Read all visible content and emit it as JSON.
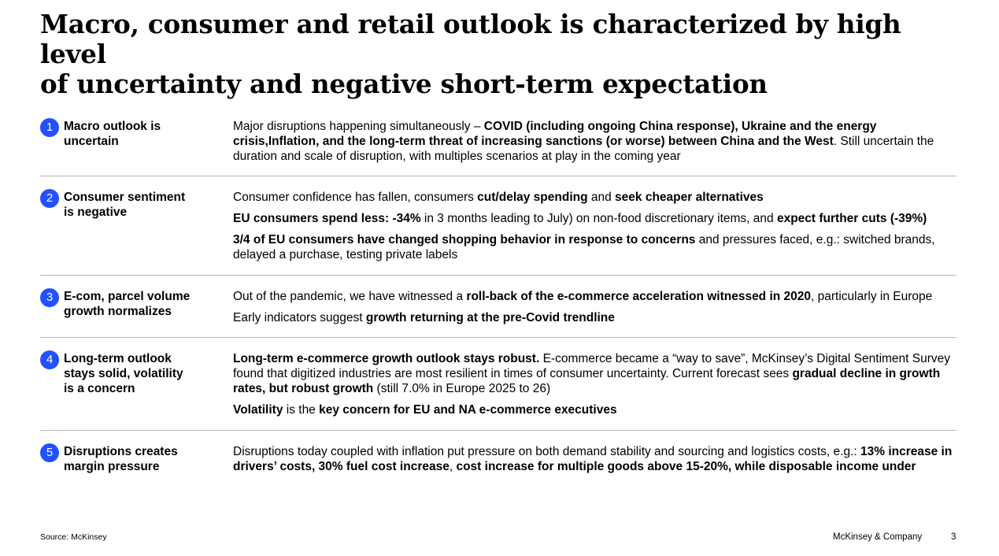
{
  "title": {
    "line1": "Macro, consumer and retail outlook is characterized by high level",
    "line2": "of uncertainty and negative short-term expectation"
  },
  "rows": [
    {
      "number": "1",
      "label_line1": "Macro outlook is",
      "label_line2": "uncertain",
      "paragraphs": [
        [
          {
            "t": "Major disruptions happening simultaneously – ",
            "b": false
          },
          {
            "t": "COVID (including ongoing China response), Ukraine and the energy crisis,",
            "b": true
          },
          {
            "t": "Inflation, and the long-term threat of increasing sanctions (or worse) between China and the West",
            "b": true
          },
          {
            "t": ". Still uncertain the duration and scale of disruption, with multiples scenarios at play in the coming year",
            "b": false
          }
        ]
      ]
    },
    {
      "number": "2",
      "label_line1": "Consumer sentiment",
      "label_line2": "is negative",
      "paragraphs": [
        [
          {
            "t": "Consumer confidence has fallen, consumers ",
            "b": false
          },
          {
            "t": "cut/delay spending",
            "b": true
          },
          {
            "t": " and ",
            "b": false
          },
          {
            "t": "seek cheaper alternatives",
            "b": true
          }
        ],
        [
          {
            "t": "EU consumers spend less: -34%",
            "b": true
          },
          {
            "t": " in 3 months leading to July) on non-food discretionary items, and ",
            "b": false
          },
          {
            "t": "expect further cuts (-39%)",
            "b": true
          }
        ],
        [
          {
            "t": "3/4 of  EU consumers have changed shopping behavior in response to concerns",
            "b": true
          },
          {
            "t": " and pressures faced, e.g.: switched brands, delayed a purchase, testing private labels",
            "b": false
          }
        ]
      ]
    },
    {
      "number": "3",
      "label_line1": "E-com, parcel volume",
      "label_line2": "growth normalizes",
      "paragraphs": [
        [
          {
            "t": "Out of the pandemic, we have witnessed a ",
            "b": false
          },
          {
            "t": "roll-back of the e-commerce acceleration witnessed in 2020",
            "b": true
          },
          {
            "t": ", particularly in Europe",
            "b": false
          }
        ],
        [
          {
            "t": "Early indicators suggest ",
            "b": false
          },
          {
            "t": "growth returning at the pre-Covid trendline",
            "b": true
          }
        ]
      ]
    },
    {
      "number": "4",
      "label_line1": "Long-term outlook",
      "label_line2": "stays solid, volatility",
      "label_line3": "is a concern",
      "paragraphs": [
        [
          {
            "t": "Long-term e-commerce growth outlook stays robust.",
            "b": true
          },
          {
            "t": " E-commerce became a “way to save”, McKinsey’s Digital Sentiment Survey found that digitized industries are most resilient in times of consumer uncertainty. Current forecast sees ",
            "b": false
          },
          {
            "t": "gradual decline in growth rates, but robust growth",
            "b": true
          },
          {
            "t": " (still  7.0% in Europe 2025 to 26)",
            "b": false
          }
        ],
        [
          {
            "t": "Volatility",
            "b": true
          },
          {
            "t": " is the ",
            "b": false
          },
          {
            "t": "key concern for EU and NA e-commerce executives",
            "b": true
          }
        ]
      ]
    },
    {
      "number": "5",
      "label_line1": "Disruptions creates",
      "label_line2": "margin pressure",
      "paragraphs": [
        [
          {
            "t": "Disruptions today coupled with inflation put pressure on both demand stability and sourcing and logistics costs, e.g.: ",
            "b": false
          },
          {
            "t": "13% increase in drivers’ costs, 30% fuel cost increase",
            "b": true
          },
          {
            "t": ", ",
            "b": false
          },
          {
            "t": "cost increase for multiple goods above 15-20%, while disposable income under",
            "b": true
          }
        ]
      ]
    }
  ],
  "footer": {
    "source": "Source: McKinsey",
    "company": "McKinsey & Company",
    "page": "3"
  },
  "colors": {
    "accent": "#2251ff",
    "divider": "#b5b5b5",
    "text": "#000000"
  }
}
